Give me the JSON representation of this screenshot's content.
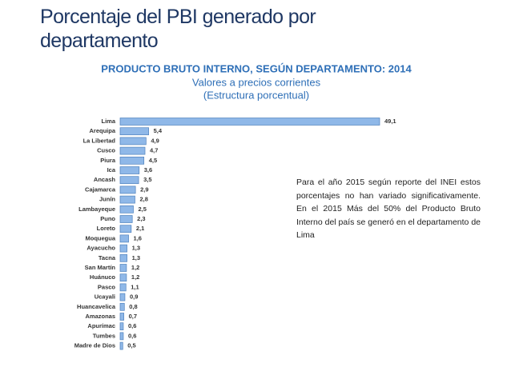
{
  "slide": {
    "title": "Porcentaje del PBI generado por departamento",
    "note": "Para el año 2015 según reporte del INEI estos porcentajes no han variado significativamente. En el 2015  Más del 50% del Producto Bruto Interno del país se generó en el departamento de Lima"
  },
  "chart_data": {
    "type": "hbar",
    "title": "PRODUCTO BRUTO INTERNO, SEGÚN DEPARTAMENTO: 2014",
    "subtitle": [
      "Valores a precios corrientes",
      "(Estructura porcentual)"
    ],
    "categories": [
      "Lima",
      "Arequipa",
      "La Libertad",
      "Cusco",
      "Piura",
      "Ica",
      "Ancash",
      "Cajamarca",
      "Junín",
      "Lambayeque",
      "Puno",
      "Loreto",
      "Moquegua",
      "Ayacucho",
      "Tacna",
      "San Martín",
      "Huánuco",
      "Pasco",
      "Ucayali",
      "Huancavelica",
      "Amazonas",
      "Apurímac",
      "Tumbes",
      "Madre de Dios"
    ],
    "values": [
      49.1,
      5.4,
      4.9,
      4.7,
      4.5,
      3.6,
      3.5,
      2.9,
      2.8,
      2.5,
      2.3,
      2.1,
      1.6,
      1.3,
      1.3,
      1.2,
      1.2,
      1.1,
      0.9,
      0.8,
      0.7,
      0.6,
      0.6,
      0.5
    ],
    "value_labels": [
      "49,1",
      "5,4",
      "4,9",
      "4,7",
      "4,5",
      "3,6",
      "3,5",
      "2,9",
      "2,8",
      "2,5",
      "2,3",
      "2,1",
      "1,6",
      "1,3",
      "1,3",
      "1,2",
      "1,2",
      "1,1",
      "0,9",
      "0,8",
      "0,7",
      "0,6",
      "0,6",
      "0,5"
    ],
    "color": "#8fb8e8"
  }
}
